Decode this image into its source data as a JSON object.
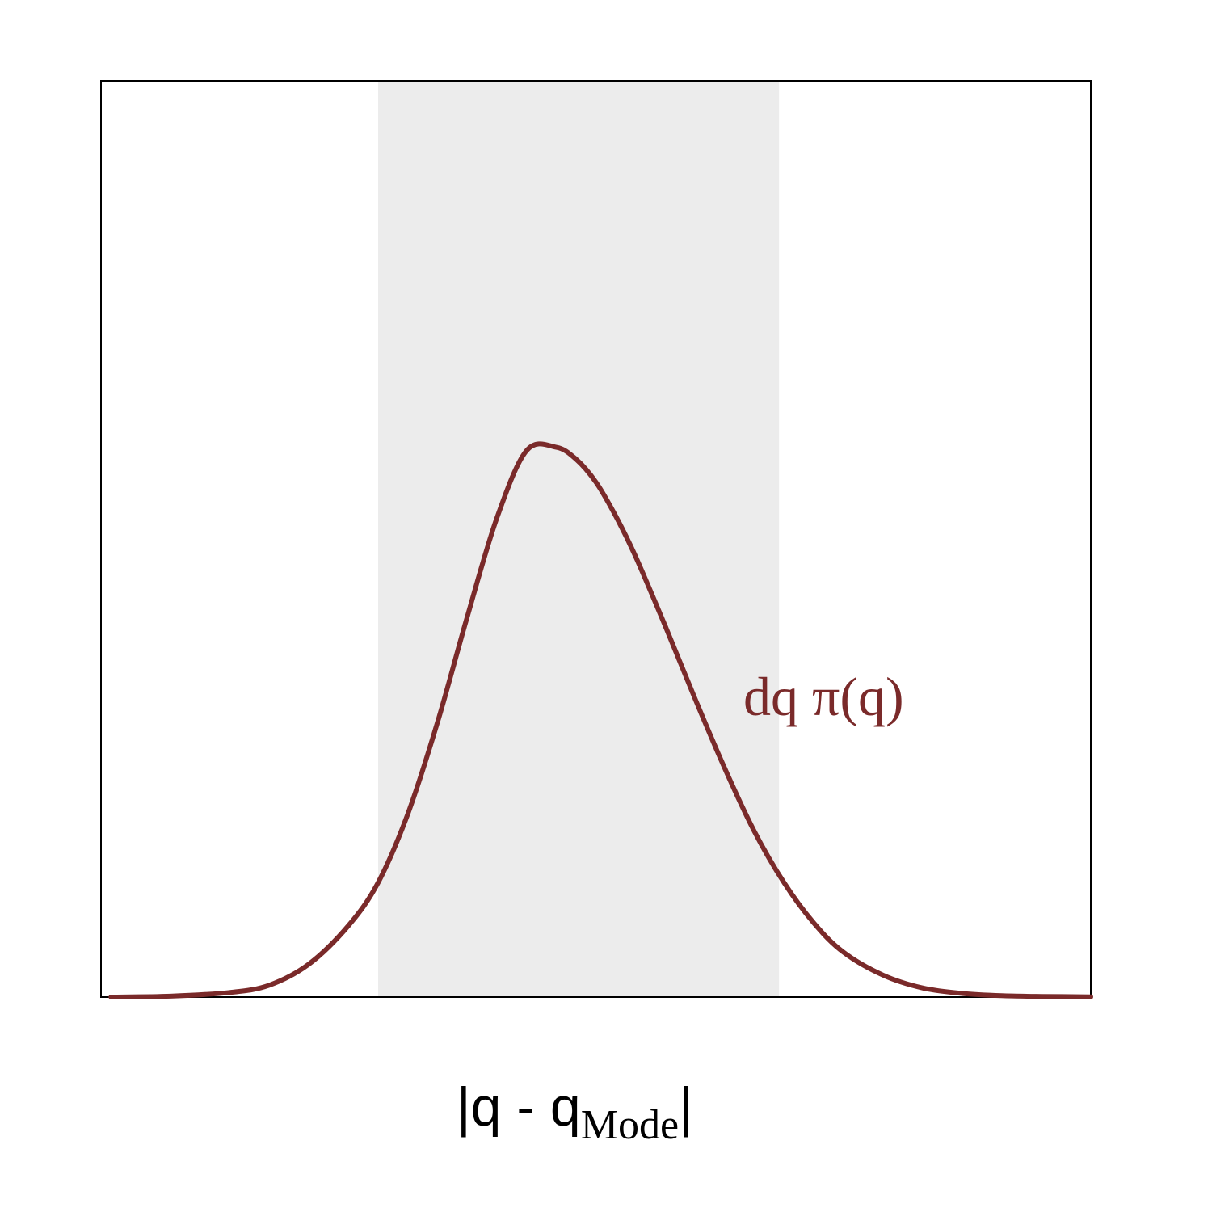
{
  "chart_data": {
    "type": "line",
    "title": "",
    "xlabel": {
      "prefix": "|q - q",
      "subscript": "Mode",
      "suffix": "|"
    },
    "ylabel": "",
    "xlim": [
      -3.5,
      6.5
    ],
    "ylim": [
      0,
      1.0
    ],
    "grid": false,
    "highlight_band": {
      "x0": -0.7,
      "x1": 3.35,
      "color": "#ececec"
    },
    "series": [
      {
        "name": "dq π(q)",
        "color": "#7a2a2a",
        "x": [
          -3.4,
          -2.8,
          -2.2,
          -1.8,
          -1.4,
          -1.0,
          -0.7,
          -0.4,
          -0.1,
          0.2,
          0.5,
          0.8,
          1.1,
          1.3,
          1.5,
          1.7,
          1.9,
          2.2,
          2.5,
          2.8,
          3.1,
          3.4,
          3.7,
          4.0,
          4.4,
          4.8,
          5.2,
          5.6,
          6.0,
          6.5
        ],
        "y": [
          0.0,
          0.001,
          0.005,
          0.013,
          0.036,
          0.078,
          0.125,
          0.2,
          0.3,
          0.415,
          0.523,
          0.5965,
          0.6,
          0.587,
          0.562,
          0.525,
          0.481,
          0.405,
          0.326,
          0.25,
          0.181,
          0.125,
          0.081,
          0.049,
          0.024,
          0.01,
          0.004,
          0.0015,
          0.0007,
          0.0003
        ]
      }
    ]
  }
}
